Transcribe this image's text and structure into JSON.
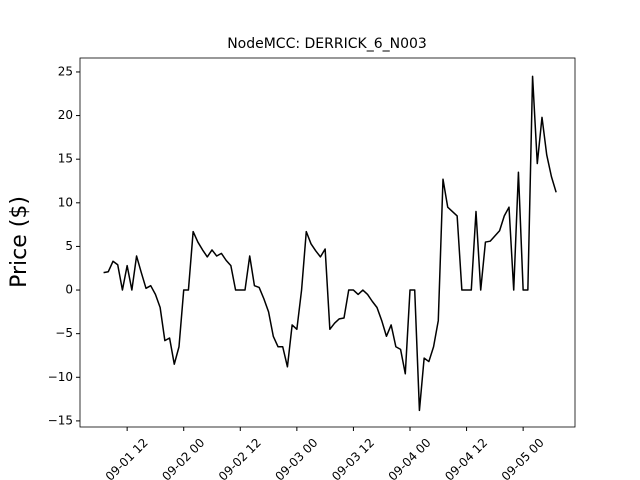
{
  "chart_data": {
    "type": "line",
    "title": "NodeMCC: DERRICK_6_N003",
    "y_label": "Price ($)",
    "x": [
      "09-01 07",
      "09-01 08",
      "09-01 09",
      "09-01 10",
      "09-01 11",
      "09-01 12",
      "09-01 13",
      "09-01 14",
      "09-01 15",
      "09-01 16",
      "09-01 17",
      "09-01 18",
      "09-01 19",
      "09-01 20",
      "09-01 21",
      "09-01 22",
      "09-01 23",
      "09-02 00",
      "09-02 01",
      "09-02 02",
      "09-02 03",
      "09-02 04",
      "09-02 05",
      "09-02 06",
      "09-02 07",
      "09-02 08",
      "09-02 09",
      "09-02 10",
      "09-02 11",
      "09-02 12",
      "09-02 13",
      "09-02 14",
      "09-02 15",
      "09-02 16",
      "09-02 17",
      "09-02 18",
      "09-02 19",
      "09-02 20",
      "09-02 21",
      "09-02 22",
      "09-02 23",
      "09-03 00",
      "09-03 01",
      "09-03 02",
      "09-03 03",
      "09-03 04",
      "09-03 05",
      "09-03 06",
      "09-03 07",
      "09-03 08",
      "09-03 09",
      "09-03 10",
      "09-03 11",
      "09-03 12",
      "09-03 13",
      "09-03 14",
      "09-03 15",
      "09-03 16",
      "09-03 17",
      "09-03 18",
      "09-03 19",
      "09-03 20",
      "09-03 21",
      "09-03 22",
      "09-03 23",
      "09-04 00",
      "09-04 01",
      "09-04 02",
      "09-04 03",
      "09-04 04",
      "09-04 05",
      "09-04 06",
      "09-04 07",
      "09-04 08",
      "09-04 09",
      "09-04 10",
      "09-04 11",
      "09-04 12",
      "09-04 13",
      "09-04 14",
      "09-04 15",
      "09-04 16",
      "09-04 17",
      "09-04 18",
      "09-04 19",
      "09-04 20",
      "09-04 21",
      "09-04 22",
      "09-04 23",
      "09-05 00",
      "09-05 01",
      "09-05 02",
      "09-05 03",
      "09-05 04",
      "09-05 05",
      "09-05 06",
      "09-05 07"
    ],
    "series": [
      {
        "color": "#000000",
        "values": [
          2.0,
          2.1,
          3.3,
          2.9,
          0,
          2.8,
          0,
          3.9,
          2.0,
          0.2,
          0.5,
          -0.5,
          -2,
          -5.8,
          -5.5,
          -8.5,
          -6.5,
          0,
          0,
          6.7,
          5.5,
          4.6,
          3.8,
          4.6,
          3.9,
          4.2,
          3.4,
          2.8,
          0,
          0,
          0,
          3.9,
          0.5,
          0.3,
          -1,
          -2.5,
          -5.3,
          -6.5,
          -6.5,
          -8.8,
          -4.0,
          -4.5,
          0,
          6.7,
          5.3,
          4.5,
          3.8,
          4.7,
          -4.5,
          -3.8,
          -3.3,
          -3.2,
          0,
          0,
          -0.5,
          0,
          -0.5,
          -1.3,
          -2.0,
          -3.5,
          -5.3,
          -4.0,
          -6.5,
          -6.8,
          -9.6,
          0,
          0,
          -13.8,
          -7.8,
          -8.2,
          -6.5,
          -3.5,
          12.7,
          9.5,
          9.0,
          8.5,
          0,
          0,
          0,
          9.0,
          0,
          5.5,
          5.6,
          6.2,
          6.8,
          8.5,
          9.5,
          0,
          13.5,
          0,
          0,
          24.5,
          14.5,
          19.8,
          15.5,
          13.0,
          11.2
        ]
      }
    ],
    "xlim": [
      "09-01 02",
      "09-05 11"
    ],
    "xticks": [
      "09-01 12",
      "09-02 00",
      "09-02 12",
      "09-03 00",
      "09-03 12",
      "09-04 00",
      "09-04 12",
      "09-05 00"
    ],
    "ylim": [
      -15.7,
      26.6
    ],
    "yticks": [
      {
        "value": -15,
        "label": "−15"
      },
      {
        "value": -10,
        "label": "−10"
      },
      {
        "value": -5,
        "label": "−5"
      },
      0,
      5,
      10,
      15,
      20,
      25
    ]
  }
}
